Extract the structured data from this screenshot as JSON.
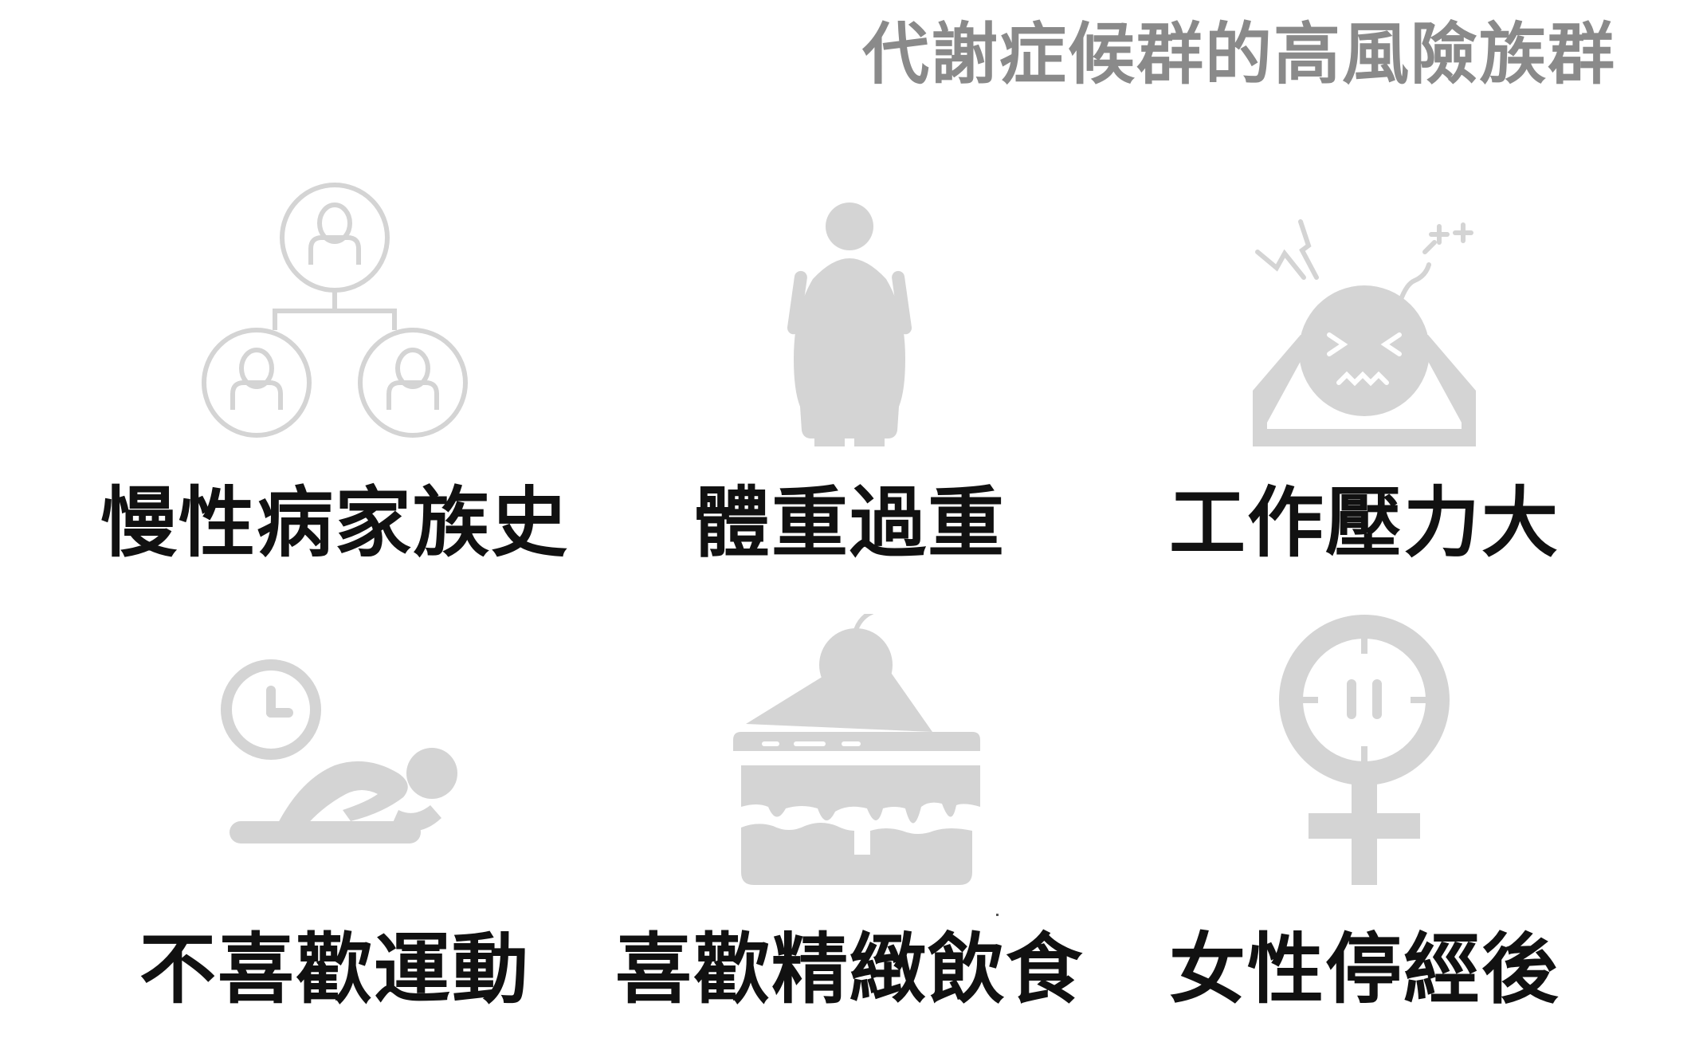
{
  "title": "代謝症候群的高風險族群",
  "groups": [
    {
      "label": "慢性病家族史",
      "icon": "family-tree-icon"
    },
    {
      "label": "體重過重",
      "icon": "overweight-person-icon"
    },
    {
      "label": "工作壓力大",
      "icon": "stressed-bomb-head-icon"
    },
    {
      "label": "不喜歡運動",
      "icon": "lying-down-clock-icon"
    },
    {
      "label": "喜歡精緻飲食",
      "icon": "cake-slice-icon"
    },
    {
      "label": "女性停經後",
      "icon": "female-symbol-icon"
    }
  ],
  "colors": {
    "icon": "#d4d4d4",
    "title": "#8a8a8a",
    "label": "#111111"
  }
}
